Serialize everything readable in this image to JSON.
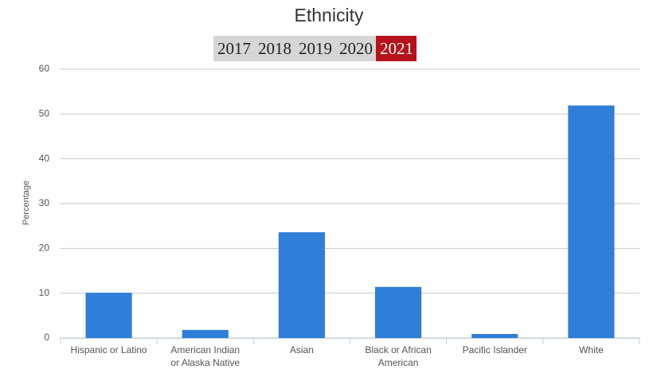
{
  "chart_data": {
    "type": "bar",
    "title": "Ethnicity",
    "year_tabs": {
      "years": [
        "2017",
        "2018",
        "2019",
        "2020",
        "2021"
      ],
      "selected": 4
    },
    "y_label": "Percentage",
    "categories": [
      "Hispanic or Latino",
      "American Indian or Alaska Native",
      "Asian",
      "Black or African American",
      "Pacific Islander",
      "White"
    ],
    "values": [
      10.1,
      1.8,
      23.6,
      11.4,
      0.9,
      51.9
    ],
    "color": "#2f7ed8",
    "ylim": [
      0,
      60
    ],
    "yticks": [
      0,
      10,
      20,
      30,
      40,
      50,
      60
    ],
    "grid": true
  }
}
